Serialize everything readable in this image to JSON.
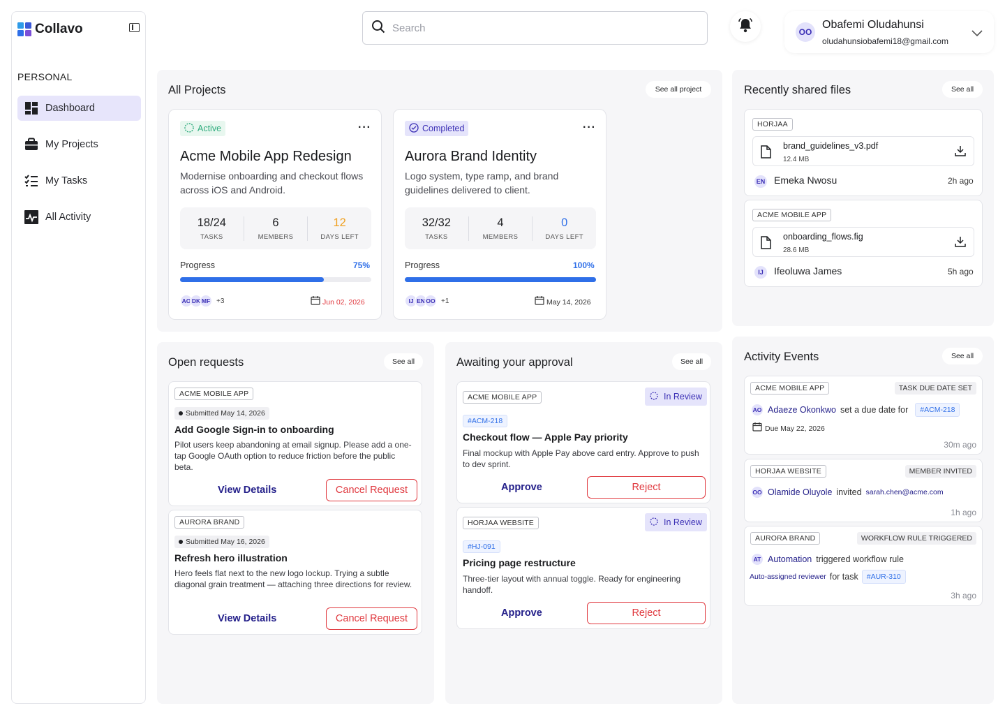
{
  "app": {
    "name": "Collavo"
  },
  "sidebar": {
    "section": "PERSONAL",
    "items": [
      {
        "label": "Dashboard",
        "icon": "dashboard-icon"
      },
      {
        "label": "My Projects",
        "icon": "briefcase-icon"
      },
      {
        "label": "My Tasks",
        "icon": "tasks-icon"
      },
      {
        "label": "All Activity",
        "icon": "activity-icon"
      }
    ]
  },
  "header": {
    "search_placeholder": "Search",
    "user": {
      "initials": "OO",
      "name": "Obafemi Oludahunsi",
      "email": "oludahunsiobafemi18@gmail.com"
    }
  },
  "colors": {
    "accent": "#2f6fe8",
    "brand_purple": "#3b2fb5",
    "danger": "#e0383e",
    "active_green": "#2eab7d",
    "due_orange": "#f0a020"
  },
  "projects": {
    "title": "All Projects",
    "see_all": "See all project",
    "progress_label": "Progress",
    "items": [
      {
        "status": "Active",
        "title": "Acme Mobile App Redesign",
        "desc": "Modernise onboarding and checkout flows across iOS and Android.",
        "tasks": "18/24",
        "tasks_label": "TASKS",
        "members": "6",
        "members_label": "MEMBERS",
        "days": "12",
        "days_label": "DAYS LEFT",
        "progress": "75%",
        "progress_value": 0.75,
        "avatars": [
          "AO",
          "DK",
          "MF"
        ],
        "more": "+3",
        "date": "Jun 02, 2026"
      },
      {
        "status": "Completed",
        "title": "Aurora Brand Identity",
        "desc": "Logo system, type ramp, and brand guidelines delivered to client.",
        "tasks": "32/32",
        "tasks_label": "TASKS",
        "members": "4",
        "members_label": "MEMBERS",
        "days": "0",
        "days_label": "DAYS LEFT",
        "progress": "100%",
        "progress_value": 1.0,
        "avatars": [
          "IJ",
          "EN",
          "OO"
        ],
        "more": "+1",
        "date": "May 14, 2026"
      }
    ]
  },
  "files": {
    "title": "Recently shared files",
    "see_all": "See all",
    "items": [
      {
        "project": "HORJAA",
        "name": "brand_guidelines_v3.pdf",
        "size": "12.4 MB",
        "initials": "EN",
        "user": "Emeka Nwosu",
        "time": "2h ago"
      },
      {
        "project": "ACME MOBILE APP",
        "name": "onboarding_flows.fig",
        "size": "28.6 MB",
        "initials": "IJ",
        "user": "Ifeoluwa James",
        "time": "5h ago"
      }
    ]
  },
  "requests": {
    "title": "Open requests",
    "see_all": "See all",
    "view_label": "View Details",
    "cancel_label": "Cancel Request",
    "items": [
      {
        "project": "ACME MOBILE APP",
        "submitted": "Submitted May 14, 2026",
        "title": "Add Google Sign-in to onboarding",
        "desc": "Pilot users keep abandoning at email signup. Please add a one-tap Google OAuth option to reduce friction before the public beta."
      },
      {
        "project": "AURORA BRAND",
        "submitted": "Submitted May 16, 2026",
        "title": "Refresh hero illustration",
        "desc": "Hero feels flat next to the new logo lockup. Trying a subtle diagonal grain treatment — attaching three directions for review."
      }
    ]
  },
  "approvals": {
    "title": "Awaiting your approval",
    "see_all": "See all",
    "approve_label": "Approve",
    "reject_label": "Reject",
    "items": [
      {
        "project": "ACME MOBILE APP",
        "status": "In Review",
        "id": "#ACM-218",
        "title": "Checkout flow — Apple Pay priority",
        "desc": "Final mockup with Apple Pay above card entry. Approve to push to dev sprint."
      },
      {
        "project": "HORJAA WEBSITE",
        "status": "In Review",
        "id": "#HJ-091",
        "title": "Pricing page restructure",
        "desc": "Three-tier layout with annual toggle. Ready for engineering handoff."
      }
    ]
  },
  "activity": {
    "title": "Activity Events",
    "see_all": "See all",
    "items": [
      {
        "project": "ACME MOBILE APP",
        "type": "TASK DUE DATE SET",
        "initials": "AO",
        "actor": "Adaeze Okonkwo",
        "action": "set a due date for",
        "ref": "#ACM-218",
        "due": "Due May 22, 2026",
        "time": "30m ago"
      },
      {
        "project": "HORJAA WEBSITE",
        "type": "MEMBER INVITED",
        "initials": "OO",
        "actor": "Olamide Oluyole",
        "action": "invited",
        "email": "sarah.chen@acme.com",
        "time": "1h ago"
      },
      {
        "project": "AURORA BRAND",
        "type": "WORKFLOW RULE TRIGGERED",
        "initials": "AT",
        "actor": "Automation",
        "action": "triggered workflow rule",
        "rule": "Auto-assigned reviewer",
        "for_task": "for task",
        "ref": "#AUR-310",
        "time": "3h ago"
      }
    ]
  }
}
